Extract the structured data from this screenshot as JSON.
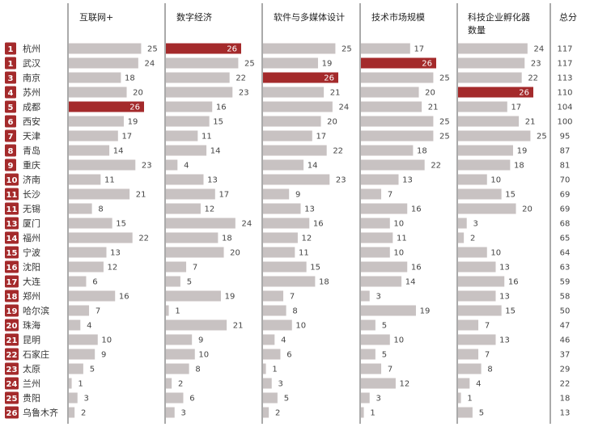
{
  "chart_data": {
    "type": "table",
    "columns": [
      "互联网+",
      "数字经济",
      "软件与多媒体设计",
      "技术市场规模",
      "科技企业孵化器数量",
      "总分"
    ],
    "rows": [
      {
        "rank": "1",
        "city": "杭州",
        "values": [
          25,
          26,
          25,
          17,
          24
        ],
        "total": 117
      },
      {
        "rank": "1",
        "city": "武汉",
        "values": [
          24,
          25,
          19,
          26,
          23
        ],
        "total": 117
      },
      {
        "rank": "3",
        "city": "南京",
        "values": [
          18,
          22,
          26,
          25,
          22
        ],
        "total": 113
      },
      {
        "rank": "4",
        "city": "苏州",
        "values": [
          20,
          23,
          21,
          20,
          26
        ],
        "total": 110
      },
      {
        "rank": "5",
        "city": "成都",
        "values": [
          26,
          16,
          24,
          21,
          17
        ],
        "total": 104
      },
      {
        "rank": "6",
        "city": "西安",
        "values": [
          19,
          15,
          20,
          25,
          21
        ],
        "total": 100
      },
      {
        "rank": "7",
        "city": "天津",
        "values": [
          17,
          11,
          17,
          25,
          25
        ],
        "total": 95
      },
      {
        "rank": "8",
        "city": "青岛",
        "values": [
          14,
          14,
          22,
          18,
          19
        ],
        "total": 87
      },
      {
        "rank": "9",
        "city": "重庆",
        "values": [
          23,
          4,
          14,
          22,
          18
        ],
        "total": 81
      },
      {
        "rank": "10",
        "city": "济南",
        "values": [
          11,
          13,
          23,
          13,
          10
        ],
        "total": 70
      },
      {
        "rank": "11",
        "city": "长沙",
        "values": [
          21,
          17,
          9,
          7,
          15
        ],
        "total": 69
      },
      {
        "rank": "11",
        "city": "无锡",
        "values": [
          8,
          12,
          13,
          16,
          20
        ],
        "total": 69
      },
      {
        "rank": "13",
        "city": "厦门",
        "values": [
          15,
          24,
          16,
          10,
          3
        ],
        "total": 68
      },
      {
        "rank": "14",
        "city": "福州",
        "values": [
          22,
          18,
          12,
          11,
          2
        ],
        "total": 65
      },
      {
        "rank": "15",
        "city": "宁波",
        "values": [
          13,
          20,
          11,
          10,
          10
        ],
        "total": 64
      },
      {
        "rank": "16",
        "city": "沈阳",
        "values": [
          12,
          7,
          15,
          16,
          13
        ],
        "total": 63
      },
      {
        "rank": "17",
        "city": "大连",
        "values": [
          6,
          5,
          18,
          14,
          16
        ],
        "total": 59
      },
      {
        "rank": "18",
        "city": "郑州",
        "values": [
          16,
          19,
          7,
          3,
          13
        ],
        "total": 58
      },
      {
        "rank": "19",
        "city": "哈尔滨",
        "values": [
          7,
          1,
          8,
          19,
          15
        ],
        "total": 50
      },
      {
        "rank": "20",
        "city": "珠海",
        "values": [
          4,
          21,
          10,
          5,
          7
        ],
        "total": 47
      },
      {
        "rank": "21",
        "city": "昆明",
        "values": [
          10,
          9,
          4,
          10,
          13
        ],
        "total": 46
      },
      {
        "rank": "22",
        "city": "石家庄",
        "values": [
          9,
          10,
          6,
          5,
          7
        ],
        "total": 37
      },
      {
        "rank": "23",
        "city": "太原",
        "values": [
          5,
          8,
          1,
          7,
          8
        ],
        "total": 29
      },
      {
        "rank": "24",
        "city": "兰州",
        "values": [
          1,
          2,
          3,
          12,
          4
        ],
        "total": 22
      },
      {
        "rank": "25",
        "city": "贵阳",
        "values": [
          3,
          6,
          5,
          3,
          1
        ],
        "total": 18
      },
      {
        "rank": "26",
        "city": "乌鲁木齐",
        "values": [
          2,
          3,
          2,
          1,
          5
        ],
        "total": 13
      }
    ],
    "max_value": 26,
    "colors": {
      "bar": "#c8c2c2",
      "highlight": "#a42a2b",
      "rank_badge": "#a42a2b"
    }
  }
}
